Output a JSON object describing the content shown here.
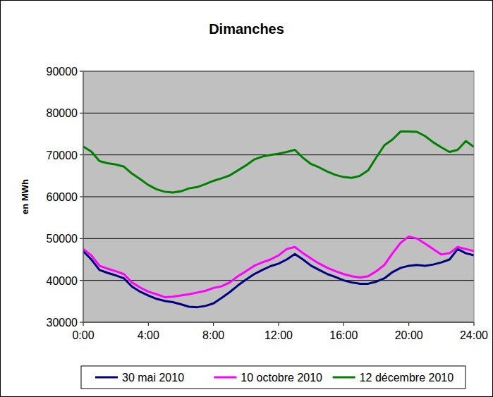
{
  "chart_data": {
    "type": "line",
    "title": "Dimanches",
    "y_label": "en MWh",
    "x": [
      0,
      0.5,
      1,
      1.5,
      2,
      2.5,
      3,
      3.5,
      4,
      4.5,
      5,
      5.5,
      6,
      6.5,
      7,
      7.5,
      8,
      8.5,
      9,
      9.5,
      10,
      10.5,
      11,
      11.5,
      12,
      12.5,
      13,
      13.5,
      14,
      14.5,
      15,
      15.5,
      16,
      16.5,
      17,
      17.5,
      18,
      18.5,
      19,
      19.5,
      20,
      20.5,
      21,
      21.5,
      22,
      22.5,
      23,
      23.5,
      24
    ],
    "series": [
      {
        "name": "30 mai 2010",
        "color": "#000080",
        "values": [
          47000,
          45000,
          42500,
          41800,
          41200,
          40500,
          38500,
          37300,
          36400,
          35600,
          35100,
          34800,
          34300,
          33700,
          33600,
          33900,
          34500,
          35800,
          37200,
          38800,
          40200,
          41500,
          42500,
          43400,
          44000,
          45000,
          46300,
          45000,
          43500,
          42500,
          41500,
          40800,
          40000,
          39500,
          39200,
          39200,
          39700,
          40500,
          42000,
          43000,
          43500,
          43700,
          43500,
          43800,
          44300,
          45000,
          47500,
          46500,
          46000
        ]
      },
      {
        "name": "10 octobre 2010",
        "color": "#ff00ff",
        "values": [
          47500,
          46000,
          43500,
          42800,
          42200,
          41500,
          39500,
          38300,
          37300,
          36700,
          36000,
          36100,
          36400,
          36700,
          37100,
          37500,
          38200,
          38600,
          39500,
          41000,
          42200,
          43500,
          44300,
          45000,
          46000,
          47500,
          48000,
          46500,
          45200,
          44000,
          43000,
          42200,
          41500,
          41000,
          40700,
          41000,
          42200,
          43700,
          46500,
          49000,
          50500,
          50000,
          48800,
          47500,
          46200,
          46500,
          48000,
          47500,
          47000
        ]
      },
      {
        "name": "12 décembre 2010",
        "color": "#008000",
        "values": [
          72000,
          70800,
          68500,
          68000,
          67700,
          67200,
          65500,
          64200,
          62800,
          61800,
          61200,
          61000,
          61300,
          62000,
          62300,
          63000,
          63800,
          64400,
          65100,
          66300,
          67500,
          68900,
          69600,
          70000,
          70300,
          70700,
          71200,
          69300,
          67800,
          67000,
          66000,
          65200,
          64700,
          64500,
          65000,
          66300,
          69400,
          72300,
          73700,
          75600,
          75600,
          75500,
          74500,
          73000,
          71800,
          70700,
          71200,
          73300,
          71900
        ]
      }
    ],
    "xlim": [
      0,
      24
    ],
    "ylim": [
      30000,
      90000
    ],
    "xticks": [
      {
        "value": 0,
        "label": "0:00"
      },
      {
        "value": 4,
        "label": "4:00"
      },
      {
        "value": 8,
        "label": "8:00"
      },
      {
        "value": 12,
        "label": "12:00"
      },
      {
        "value": 16,
        "label": "16:00"
      },
      {
        "value": 20,
        "label": "20:00"
      },
      {
        "value": 24,
        "label": "24:00"
      }
    ],
    "yticks": [
      30000,
      40000,
      50000,
      60000,
      70000,
      80000,
      90000
    ],
    "grid": true,
    "legend": "bottom"
  }
}
